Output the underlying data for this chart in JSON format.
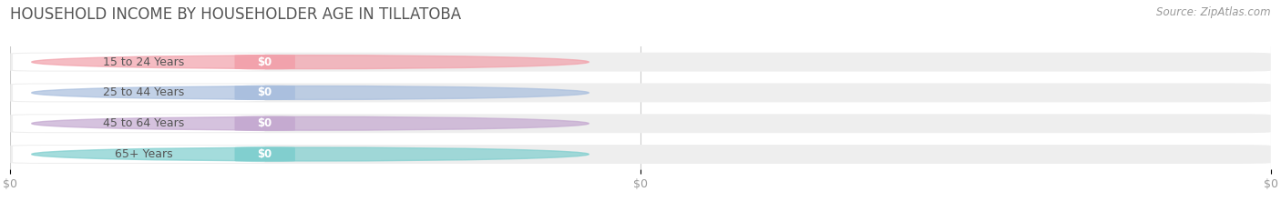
{
  "title": "HOUSEHOLD INCOME BY HOUSEHOLDER AGE IN TILLATOBA",
  "source_text": "Source: ZipAtlas.com",
  "categories": [
    "15 to 24 Years",
    "25 to 44 Years",
    "45 to 64 Years",
    "65+ Years"
  ],
  "values": [
    0,
    0,
    0,
    0
  ],
  "bar_colors": [
    "#f2a0aa",
    "#a8bede",
    "#c4a8d0",
    "#7ecece"
  ],
  "value_labels": [
    "$0",
    "$0",
    "$0",
    "$0"
  ],
  "x_tick_positions": [
    0,
    0.5,
    1.0
  ],
  "x_tick_labels": [
    "$0",
    "$0",
    "$0"
  ],
  "background_color": "#ffffff",
  "title_fontsize": 12,
  "title_color": "#555555",
  "bar_height": 0.62,
  "xlim": [
    0,
    1.0
  ]
}
